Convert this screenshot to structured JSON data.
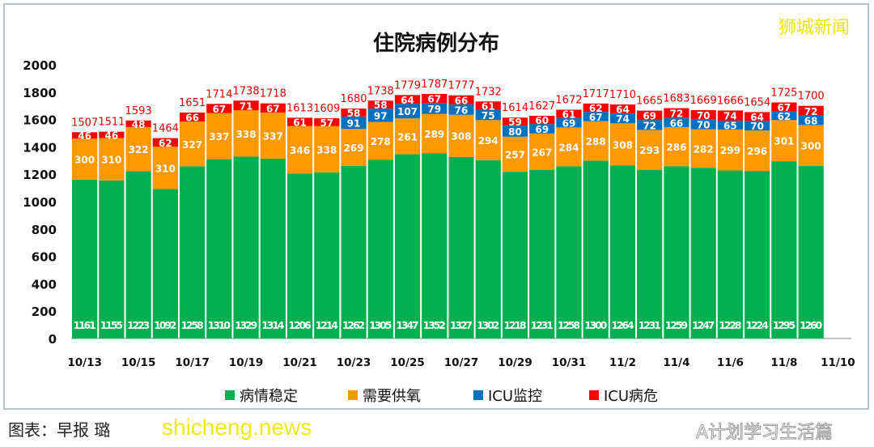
{
  "chart_data": {
    "type": "bar",
    "stacked": true,
    "title": "住院病例分布",
    "categories": [
      "10/13",
      "10/14",
      "10/15",
      "10/16",
      "10/17",
      "10/18",
      "10/19",
      "10/20",
      "10/21",
      "10/22",
      "10/23",
      "10/24",
      "10/25",
      "10/26",
      "10/27",
      "10/28",
      "10/29",
      "10/30",
      "10/31",
      "11/1",
      "11/2",
      "11/3",
      "11/4",
      "11/5",
      "11/6",
      "11/7",
      "11/8",
      "11/9",
      "11/10"
    ],
    "tick_labels": [
      "10/13",
      "10/15",
      "10/17",
      "10/19",
      "10/21",
      "10/23",
      "10/25",
      "10/27",
      "10/29",
      "10/31",
      "11/2",
      "11/4",
      "11/6",
      "11/8",
      "11/10"
    ],
    "series": [
      {
        "name": "病情稳定",
        "color": "#00b050",
        "values": [
          1161,
          1155,
          1223,
          1092,
          1258,
          1310,
          1329,
          1314,
          1206,
          1214,
          1262,
          1305,
          1347,
          1352,
          1327,
          1302,
          1218,
          1231,
          1258,
          1300,
          1264,
          1231,
          1259,
          1247,
          1228,
          1224,
          1295,
          1260,
          null
        ]
      },
      {
        "name": "需要供氧",
        "color": "#ff9900",
        "values": [
          300,
          310,
          322,
          310,
          327,
          337,
          338,
          337,
          346,
          338,
          269,
          278,
          261,
          289,
          308,
          294,
          257,
          267,
          284,
          288,
          308,
          293,
          286,
          282,
          299,
          296,
          301,
          300,
          null
        ]
      },
      {
        "name": "ICU监控",
        "color": "#0070c0",
        "values": [
          null,
          null,
          null,
          null,
          null,
          null,
          null,
          null,
          null,
          null,
          91,
          97,
          107,
          79,
          76,
          75,
          80,
          69,
          69,
          67,
          74,
          72,
          66,
          70,
          65,
          70,
          62,
          68,
          null
        ]
      },
      {
        "name": "ICU病危",
        "color": "#ff0000",
        "values": [
          46,
          46,
          48,
          62,
          66,
          67,
          71,
          67,
          61,
          57,
          58,
          58,
          64,
          67,
          66,
          61,
          59,
          60,
          61,
          62,
          64,
          69,
          72,
          70,
          74,
          64,
          67,
          72,
          null
        ]
      }
    ],
    "totals": [
      1507,
      1511,
      1593,
      1464,
      1651,
      1714,
      1738,
      1718,
      1613,
      1609,
      1680,
      1738,
      1779,
      1787,
      1777,
      1732,
      1614,
      1627,
      1672,
      1717,
      1710,
      1665,
      1683,
      1669,
      1666,
      1654,
      1725,
      1700,
      null
    ],
    "ylim": [
      0,
      2000
    ],
    "yticks": [
      0,
      200,
      400,
      600,
      800,
      1000,
      1200,
      1400,
      1600,
      1800,
      2000
    ],
    "grid": false,
    "legend": "bottom"
  },
  "caption": "图表：早报 璐",
  "watermarks": {
    "site": "shicheng.news",
    "brand": "狮城新闻",
    "account": "A计划学习生活篇"
  }
}
